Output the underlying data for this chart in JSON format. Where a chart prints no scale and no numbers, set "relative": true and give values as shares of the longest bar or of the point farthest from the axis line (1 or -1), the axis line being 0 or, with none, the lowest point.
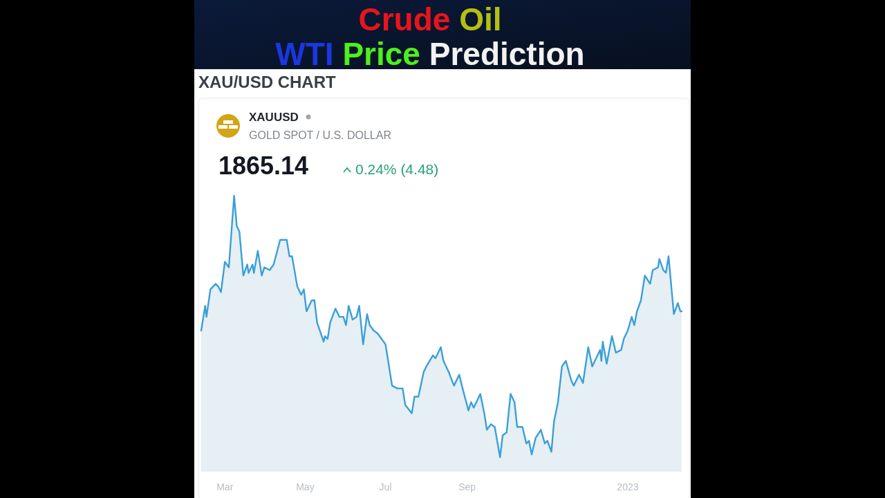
{
  "chart_data": {
    "type": "area",
    "title": "Crude Oil WTI Price Prediction",
    "subtitle": "XAU/USD CHART",
    "annotations": [
      "XAUUSD",
      "GOLD SPOT / U.S. DOLLAR",
      "1865.14",
      "0.24% (4.48)"
    ],
    "relative": true,
    "xlim": [
      "2022-02-11",
      "2023-02-11"
    ],
    "xticks": [
      {
        "value": "2022-03-01",
        "label": "Mar"
      },
      {
        "value": "2022-05-01",
        "label": "May"
      },
      {
        "value": "2022-07-01",
        "label": "Jul"
      },
      {
        "value": "2022-09-01",
        "label": "Sep"
      },
      {
        "value": "2023-01-01",
        "label": "2023"
      }
    ],
    "x": [
      "2022-02-11",
      "2022-02-14",
      "2022-02-15",
      "2022-02-18",
      "2022-02-22",
      "2022-02-24",
      "2022-02-26",
      "2022-03-01",
      "2022-03-04",
      "2022-03-08",
      "2022-03-10",
      "2022-03-12",
      "2022-03-15",
      "2022-03-18",
      "2022-03-19",
      "2022-03-22",
      "2022-03-23",
      "2022-03-26",
      "2022-03-29",
      "2022-03-31",
      "2022-04-04",
      "2022-04-07",
      "2022-04-12",
      "2022-04-17",
      "2022-04-19",
      "2022-04-21",
      "2022-04-25",
      "2022-04-28",
      "2022-04-30",
      "2022-05-02",
      "2022-05-06",
      "2022-05-08",
      "2022-05-10",
      "2022-05-15",
      "2022-05-16",
      "2022-05-18",
      "2022-05-20",
      "2022-05-24",
      "2022-05-27",
      "2022-05-30",
      "2022-06-01",
      "2022-06-03",
      "2022-06-06",
      "2022-06-09",
      "2022-06-11",
      "2022-06-14",
      "2022-06-17",
      "2022-06-19",
      "2022-06-22",
      "2022-06-25",
      "2022-06-28",
      "2022-07-01",
      "2022-07-06",
      "2022-07-10",
      "2022-07-14",
      "2022-07-16",
      "2022-07-21",
      "2022-07-23",
      "2022-07-26",
      "2022-07-30",
      "2022-08-01",
      "2022-08-06",
      "2022-08-08",
      "2022-08-12",
      "2022-08-14",
      "2022-08-18",
      "2022-08-22",
      "2022-08-26",
      "2022-08-28",
      "2022-09-02",
      "2022-09-04",
      "2022-09-06",
      "2022-09-11",
      "2022-09-14",
      "2022-09-16",
      "2022-09-19",
      "2022-09-22",
      "2022-09-26",
      "2022-09-28",
      "2022-10-01",
      "2022-10-04",
      "2022-10-07",
      "2022-10-09",
      "2022-10-13",
      "2022-10-16",
      "2022-10-18",
      "2022-10-20",
      "2022-10-23",
      "2022-10-27",
      "2022-10-30",
      "2022-11-01",
      "2022-11-04",
      "2022-11-06",
      "2022-11-09",
      "2022-11-12",
      "2022-11-15",
      "2022-11-19",
      "2022-11-21",
      "2022-11-25",
      "2022-11-28",
      "2022-12-02",
      "2022-12-05",
      "2022-12-08",
      "2022-12-11",
      "2022-12-12",
      "2022-12-13",
      "2022-12-16",
      "2022-12-20",
      "2022-12-23",
      "2022-12-27",
      "2022-12-29",
      "2023-01-01",
      "2023-01-04",
      "2023-01-06",
      "2023-01-08",
      "2023-01-11",
      "2023-01-14",
      "2023-01-18",
      "2023-01-20",
      "2023-01-24",
      "2023-01-25",
      "2023-01-28",
      "2023-01-30",
      "2023-02-01",
      "2023-02-05",
      "2023-02-08",
      "2023-02-10",
      "2023-02-11"
    ],
    "series": [
      {
        "color": "#3a9fd8",
        "values": [
          0.51,
          0.6,
          0.56,
          0.66,
          0.68,
          0.67,
          0.65,
          0.76,
          0.74,
          1,
          0.89,
          0.87,
          0.71,
          0.75,
          0.72,
          0.75,
          0.72,
          0.8,
          0.71,
          0.74,
          0.73,
          0.75,
          0.84,
          0.84,
          0.78,
          0.78,
          0.67,
          0.64,
          0.66,
          0.58,
          0.62,
          0.62,
          0.54,
          0.47,
          0.49,
          0.48,
          0.54,
          0.59,
          0.56,
          0.56,
          0.53,
          0.6,
          0.55,
          0.56,
          0.6,
          0.46,
          0.57,
          0.53,
          0.51,
          0.5,
          0.48,
          0.46,
          0.31,
          0.3,
          0.3,
          0.24,
          0.21,
          0.27,
          0.27,
          0.36,
          0.38,
          0.42,
          0.41,
          0.45,
          0.4,
          0.36,
          0.31,
          0.35,
          0.31,
          0.22,
          0.25,
          0.23,
          0.28,
          0.21,
          0.15,
          0.17,
          0.16,
          0.05,
          0.13,
          0.14,
          0.28,
          0.25,
          0.16,
          0.16,
          0.1,
          0.11,
          0.06,
          0.12,
          0.15,
          0.1,
          0.11,
          0.07,
          0.18,
          0.25,
          0.38,
          0.4,
          0.33,
          0.31,
          0.35,
          0.32,
          0.45,
          0.38,
          0.41,
          0.44,
          0.4,
          0.47,
          0.39,
          0.49,
          0.43,
          0.44,
          0.48,
          0.51,
          0.56,
          0.53,
          0.58,
          0.62,
          0.71,
          0.68,
          0.73,
          0.74,
          0.77,
          0.73,
          0.72,
          0.78,
          0.57,
          0.61,
          0.58,
          0.58
        ]
      }
    ]
  }
}
